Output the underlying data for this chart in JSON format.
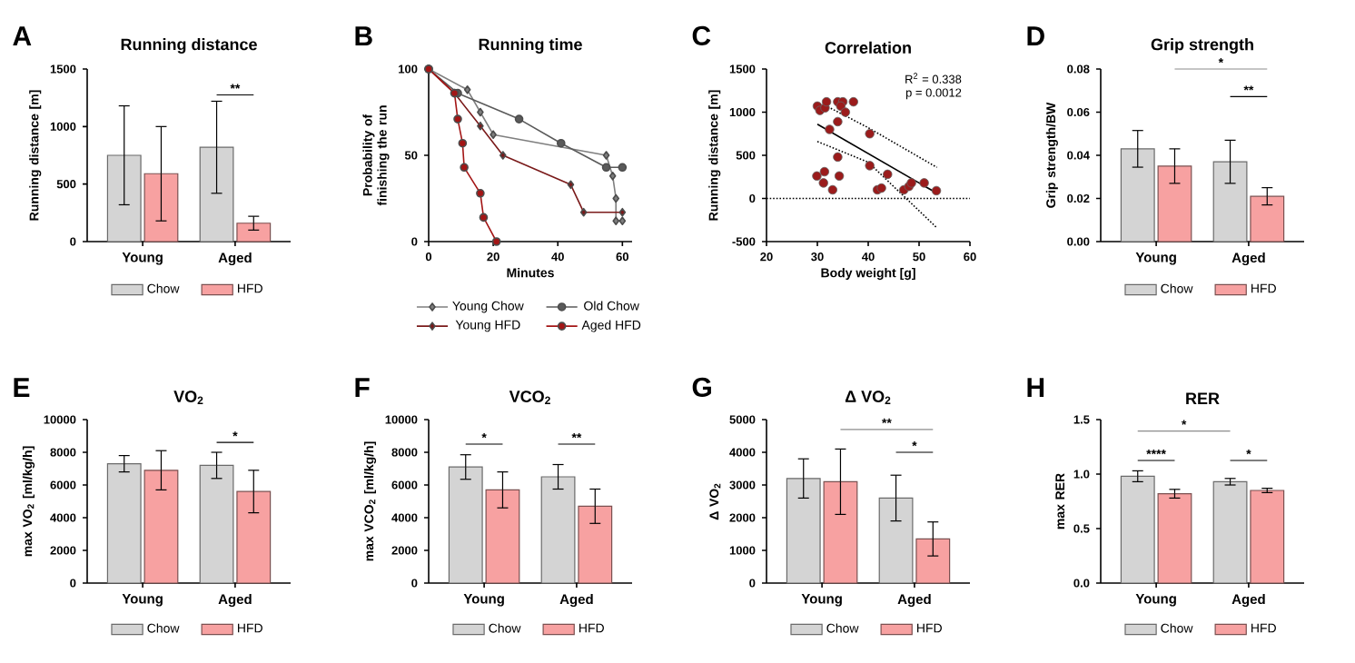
{
  "chart_data": [
    {
      "type": "bar",
      "title": "Running distance",
      "ylabel": "Running distance [m]",
      "categories": [
        "Young",
        "Aged"
      ],
      "ylim": [
        0,
        1500
      ],
      "yticks": [
        0,
        500,
        1000,
        1500
      ],
      "legend": "bottom",
      "series": [
        {
          "name": "Chow",
          "color": "#d4d4d4",
          "values": [
            750,
            820
          ],
          "errors": [
            430,
            400
          ]
        },
        {
          "name": "HFD",
          "color": "#f7a1a1",
          "values": [
            590,
            160
          ],
          "errors": [
            410,
            60
          ]
        }
      ],
      "annotations": [
        "A",
        "**"
      ]
    },
    {
      "type": "line",
      "title": "Running time",
      "xlabel": "Minutes",
      "ylabel": "Probability of finishing the run",
      "xlim": [
        0,
        63
      ],
      "xticks": [
        0,
        20,
        40,
        60
      ],
      "ylim": [
        0,
        100
      ],
      "yticks": [
        0,
        50,
        100
      ],
      "legend": "bottom",
      "series": [
        {
          "name": "Young Chow",
          "color": "#7f7f7f",
          "marker": "diamond",
          "x": [
            0,
            12,
            16,
            20,
            55,
            57,
            58,
            58,
            60
          ],
          "values": [
            100,
            88,
            75,
            62,
            50,
            38,
            25,
            12,
            12
          ]
        },
        {
          "name": "Old Chow",
          "color": "#5a5a5a",
          "marker": "circle",
          "x": [
            0,
            9,
            28,
            41,
            55,
            60
          ],
          "values": [
            100,
            86,
            71,
            57,
            43,
            43
          ]
        },
        {
          "name": "Young HFD",
          "color": "#7a1a1a",
          "marker": "diamond",
          "x": [
            0,
            8,
            16,
            23,
            44,
            48,
            60
          ],
          "values": [
            100,
            86,
            67,
            50,
            33,
            17,
            17
          ]
        },
        {
          "name": "Aged HFD",
          "color": "#a31515",
          "marker": "circle",
          "x": [
            0,
            8,
            9,
            10.5,
            11,
            16,
            17,
            21
          ],
          "values": [
            100,
            86,
            71,
            57,
            43,
            28,
            14,
            0
          ]
        }
      ],
      "annotations": [
        "B"
      ]
    },
    {
      "type": "scatter",
      "title": "Correlation",
      "xlabel": "Body weight [g]",
      "ylabel": "Running distance [m]",
      "xlim": [
        20,
        60
      ],
      "xticks": [
        20,
        30,
        40,
        50,
        60
      ],
      "ylim": [
        -500,
        1500
      ],
      "yticks": [
        -500,
        0,
        500,
        1000,
        1500
      ],
      "series": [
        {
          "type": "scatter",
          "color": "#9b1b1b",
          "marker": "circle",
          "x": [
            30,
            30.5,
            31.5,
            31.8,
            34,
            35,
            34.6,
            35.5,
            37.1,
            32.4,
            34,
            40.3,
            34,
            40.3,
            29.9,
            31.4,
            31.2,
            34.3,
            33,
            43.8,
            41.8,
            42.6,
            47,
            48,
            48.5,
            51,
            53.4
          ],
          "values": [
            1070,
            1020,
            1050,
            1120,
            1120,
            1120,
            1070,
            1000,
            1120,
            800,
            890,
            750,
            480,
            380,
            260,
            310,
            180,
            260,
            100,
            280,
            100,
            120,
            100,
            140,
            180,
            180,
            90
          ]
        },
        {
          "type": "line",
          "color": "#000000",
          "line_style": "solid",
          "x": [
            30,
            53.5
          ],
          "values": [
            860,
            60
          ]
        },
        {
          "type": "line",
          "color": "#000000",
          "line_style": "dotted",
          "x": [
            31.5,
            40,
            53.5
          ],
          "values": [
            1080,
            820,
            360
          ]
        },
        {
          "type": "line",
          "color": "#000000",
          "line_style": "dotted",
          "x": [
            30,
            40,
            53.5
          ],
          "values": [
            660,
            420,
            -340
          ]
        }
      ],
      "ref_lines": [
        {
          "axis": "y",
          "value": 0,
          "line_style": "dotted"
        }
      ],
      "annotations": [
        "C",
        "R$^{2}$ = 0.338",
        "p = 0.0012"
      ]
    },
    {
      "type": "bar",
      "title": "Grip strength",
      "ylabel": "Grip strength/BW",
      "categories": [
        "Young",
        "Aged"
      ],
      "ylim": [
        0,
        0.08
      ],
      "yticks": [
        {
          "value": 0,
          "label": "0.00"
        },
        {
          "value": 0.02,
          "label": "0.02"
        },
        {
          "value": 0.04,
          "label": "0.04"
        },
        {
          "value": 0.06,
          "label": "0.06"
        },
        {
          "value": 0.08,
          "label": "0.08"
        }
      ],
      "legend": "bottom",
      "series": [
        {
          "name": "Chow",
          "color": "#d4d4d4",
          "values": [
            0.043,
            0.037
          ],
          "errors": [
            0.0085,
            0.01
          ]
        },
        {
          "name": "HFD",
          "color": "#f7a1a1",
          "values": [
            0.035,
            0.021
          ],
          "errors": [
            0.008,
            0.004
          ]
        }
      ],
      "annotations": [
        "D",
        "*",
        "**"
      ]
    },
    {
      "type": "bar",
      "title": "VO$_{2}$",
      "ylabel": "max VO$_{2}$ [ml/kg/h]",
      "categories": [
        "Young",
        "Aged"
      ],
      "ylim": [
        0,
        10000
      ],
      "yticks": [
        0,
        2000,
        4000,
        6000,
        8000,
        10000
      ],
      "legend": "bottom",
      "series": [
        {
          "name": "Chow",
          "color": "#d4d4d4",
          "values": [
            7300,
            7200
          ],
          "errors": [
            500,
            800
          ]
        },
        {
          "name": "HFD",
          "color": "#f7a1a1",
          "values": [
            6900,
            5600
          ],
          "errors": [
            1200,
            1300
          ]
        }
      ],
      "annotations": [
        "E",
        "*"
      ]
    },
    {
      "type": "bar",
      "title": "VCO$_{2}$",
      "ylabel": "max VCO$_{2}$ [ml/kg/h]",
      "categories": [
        "Young",
        "Aged"
      ],
      "ylim": [
        0,
        10000
      ],
      "yticks": [
        0,
        2000,
        4000,
        6000,
        8000,
        10000
      ],
      "legend": "bottom",
      "series": [
        {
          "name": "Chow",
          "color": "#d4d4d4",
          "values": [
            7100,
            6500
          ],
          "errors": [
            750,
            750
          ]
        },
        {
          "name": "HFD",
          "color": "#f7a1a1",
          "values": [
            5700,
            4700
          ],
          "errors": [
            1100,
            1050
          ]
        }
      ],
      "annotations": [
        "F",
        "*",
        "**"
      ]
    },
    {
      "type": "bar",
      "title": "Δ VO$_{2}$",
      "ylabel": "Δ VO$_{2}$",
      "categories": [
        "Young",
        "Aged"
      ],
      "ylim": [
        0,
        5000
      ],
      "yticks": [
        0,
        1000,
        2000,
        3000,
        4000,
        5000
      ],
      "legend": "bottom",
      "series": [
        {
          "name": "Chow",
          "color": "#d4d4d4",
          "values": [
            3200,
            2600
          ],
          "errors": [
            600,
            700
          ]
        },
        {
          "name": "HFD",
          "color": "#f7a1a1",
          "values": [
            3100,
            1350
          ],
          "errors": [
            1000,
            520
          ]
        }
      ],
      "annotations": [
        "G",
        "**",
        "*"
      ]
    },
    {
      "type": "bar",
      "title": "RER",
      "ylabel": "max RER",
      "categories": [
        "Young",
        "Aged"
      ],
      "ylim": [
        0,
        1.5
      ],
      "yticks": [
        {
          "value": 0,
          "label": "0.0"
        },
        {
          "value": 0.5,
          "label": "0.5"
        },
        {
          "value": 1,
          "label": "1.0"
        },
        {
          "value": 1.5,
          "label": "1.5"
        }
      ],
      "legend": "bottom",
      "series": [
        {
          "name": "Chow",
          "color": "#d4d4d4",
          "values": [
            0.98,
            0.93
          ],
          "errors": [
            0.05,
            0.03
          ]
        },
        {
          "name": "HFD",
          "color": "#f7a1a1",
          "values": [
            0.82,
            0.85
          ],
          "errors": [
            0.04,
            0.02
          ]
        }
      ],
      "annotations": [
        "H",
        "*",
        "****",
        "*"
      ]
    }
  ]
}
